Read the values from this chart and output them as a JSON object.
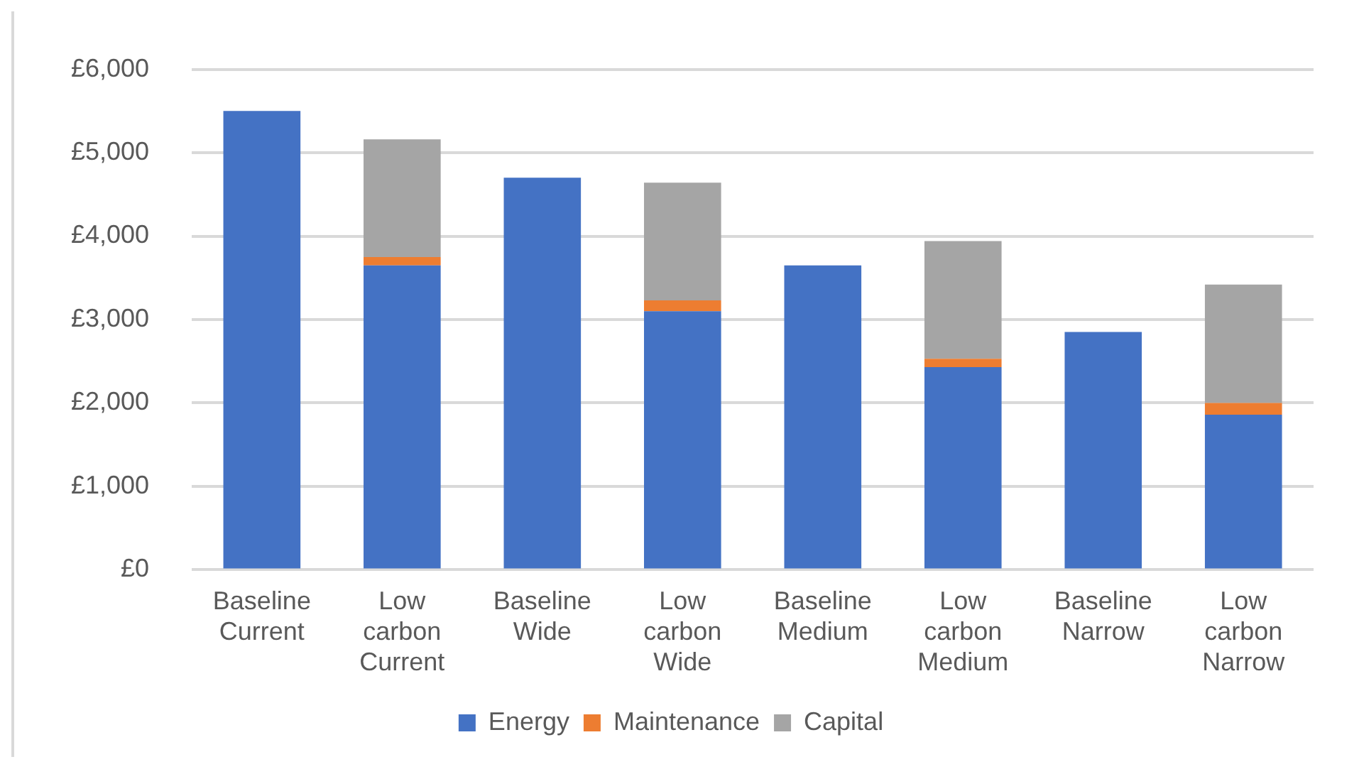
{
  "chart_data": {
    "type": "bar",
    "stacked": true,
    "categories": [
      "Baseline Current",
      "Low carbon Current",
      "Baseline Wide",
      "Low carbon Wide",
      "Baseline Medium",
      "Low carbon Medium",
      "Baseline Narrow",
      "Low carbon Narrow"
    ],
    "series": [
      {
        "name": "Energy",
        "color": "#4472c4",
        "values": [
          5500,
          3650,
          4700,
          3100,
          3650,
          2430,
          2850,
          1860
        ]
      },
      {
        "name": "Maintenance",
        "color": "#ed7d31",
        "values": [
          0,
          100,
          0,
          130,
          0,
          100,
          0,
          140
        ]
      },
      {
        "name": "Capital",
        "color": "#a5a5a5",
        "values": [
          0,
          1410,
          0,
          1410,
          0,
          1410,
          0,
          1420
        ]
      }
    ],
    "ylim": [
      0,
      6000
    ],
    "yticks": [
      {
        "value": 0,
        "label": "£0"
      },
      {
        "value": 1000,
        "label": "£1,000"
      },
      {
        "value": 2000,
        "label": "£2,000"
      },
      {
        "value": 3000,
        "label": "£3,000"
      },
      {
        "value": 4000,
        "label": "£4,000"
      },
      {
        "value": 5000,
        "label": "£5,000"
      },
      {
        "value": 6000,
        "label": "£6,000"
      }
    ],
    "grid": "y",
    "legend": "bottom"
  }
}
